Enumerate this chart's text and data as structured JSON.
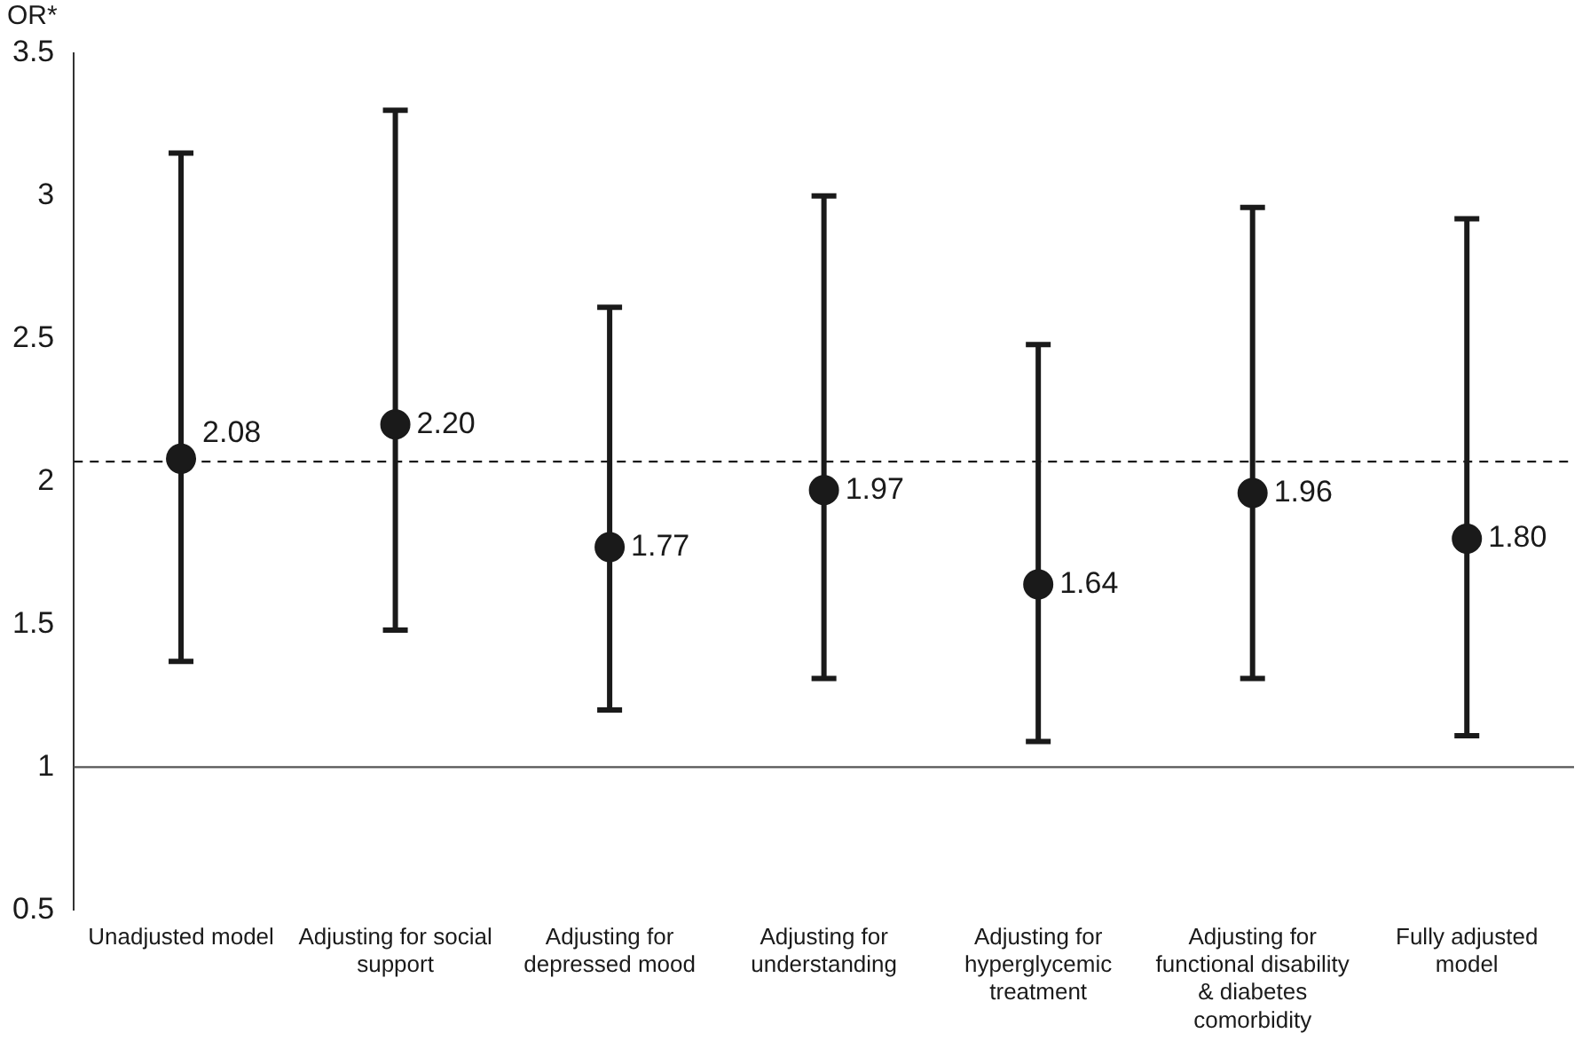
{
  "chart_data": {
    "type": "scatter",
    "ylabel": "OR*",
    "categories": [
      "Unadjusted model",
      "Adjusting for social support",
      "Adjusting for depressed mood",
      "Adjusting for understanding",
      "Adjusting for hyperglycemic treatment",
      "Adjusting for functional disability & diabetes comorbidity",
      "Fully adjusted model"
    ],
    "values": [
      2.08,
      2.2,
      1.77,
      1.97,
      1.64,
      1.96,
      1.8
    ],
    "errors": [
      [
        1.37,
        3.15
      ],
      [
        1.48,
        3.3
      ],
      [
        1.2,
        2.61
      ],
      [
        1.31,
        3.0
      ],
      [
        1.09,
        2.48
      ],
      [
        1.31,
        2.96
      ],
      [
        1.11,
        2.92
      ]
    ],
    "value_labels": [
      "2.08",
      "2.20",
      "1.77",
      "1.97",
      "1.64",
      "1.96",
      "1.80"
    ],
    "color": "#1a1a1a",
    "marker": "circle",
    "grid": false,
    "legend": false,
    "ylim": [
      0.5,
      3.5
    ],
    "yticks": [
      0.5,
      1,
      1.5,
      2,
      2.5,
      3,
      3.5
    ],
    "ref_lines": [
      {
        "axis": "y",
        "value": 2.07,
        "line_style": "dashed",
        "color": "#1a1a1a"
      },
      {
        "axis": "y",
        "value": 1,
        "line_style": "solid",
        "color": "#555555"
      }
    ]
  }
}
